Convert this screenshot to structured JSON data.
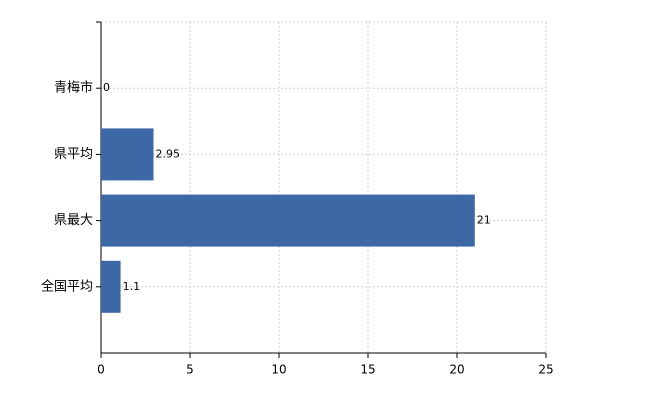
{
  "chart_data": {
    "type": "hbar",
    "categories": [
      "青梅市",
      "県平均",
      "県最大",
      "全国平均"
    ],
    "values": [
      0,
      2.95,
      21,
      1.1
    ],
    "color": "#3c68a6",
    "xlim": [
      0,
      25
    ],
    "xticks": [
      0,
      5,
      10,
      15,
      20,
      25
    ],
    "grid": true
  }
}
